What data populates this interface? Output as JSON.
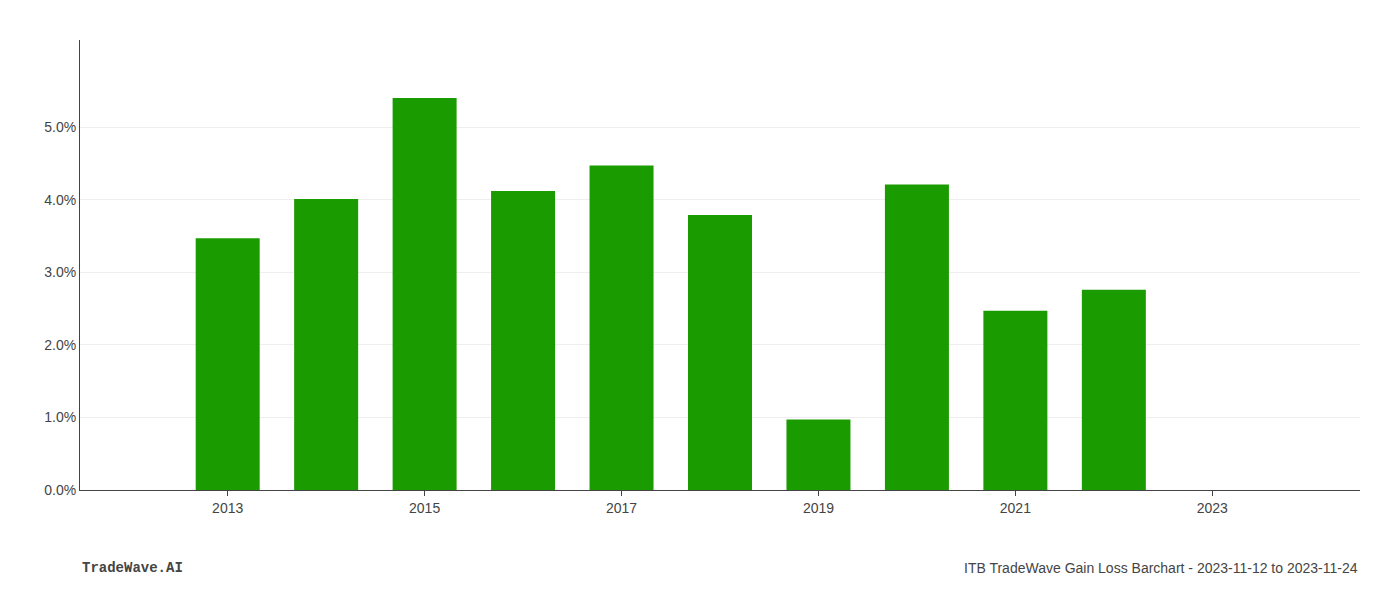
{
  "chart_data": {
    "type": "bar",
    "x": [
      2013,
      2014,
      2015,
      2016,
      2017,
      2018,
      2019,
      2020,
      2021,
      2022
    ],
    "values": [
      0.0347,
      0.0401,
      0.054,
      0.0412,
      0.0447,
      0.0379,
      0.0097,
      0.0421,
      0.0247,
      0.0276
    ],
    "color": "#1a9b00",
    "xlim": [
      2011.5,
      2024.5
    ],
    "xticks": [
      2013,
      2015,
      2017,
      2019,
      2021,
      2023
    ],
    "ylim": [
      0,
      0.062
    ],
    "yticks": [
      {
        "value": 0.0,
        "label": "0.0%"
      },
      {
        "value": 0.01,
        "label": "1.0%"
      },
      {
        "value": 0.02,
        "label": "2.0%"
      },
      {
        "value": 0.03,
        "label": "3.0%"
      },
      {
        "value": 0.04,
        "label": "4.0%"
      },
      {
        "value": 0.05,
        "label": "5.0%"
      }
    ],
    "grid": true,
    "annotations": [
      "TradeWave.AI",
      "ITB TradeWave Gain Loss Barchart - 2023-11-12 to 2023-11-24"
    ]
  }
}
